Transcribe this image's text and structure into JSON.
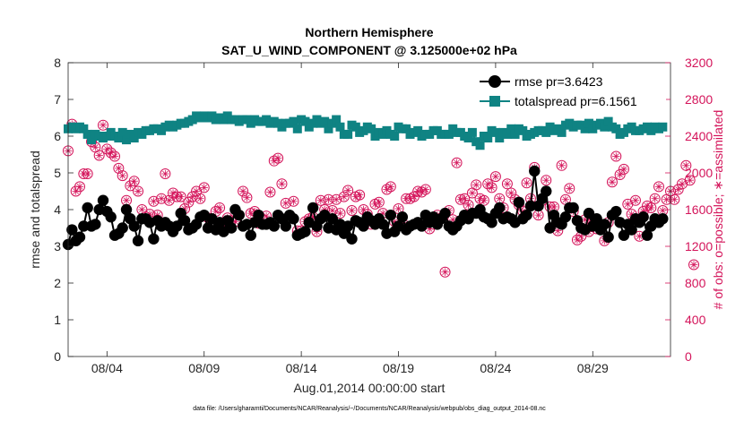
{
  "chart_data": {
    "type": "line",
    "title": "Northern Hemisphere",
    "subtitle": "SAT_U_WIND_COMPONENT @ 3.125000e+02 hPa",
    "xlabel": "Aug.01,2014 00:00:00 start",
    "ylabel": "rmse and totalspread",
    "y2label": "# of obs: o=possible; ∗=assimilated",
    "footnote": "data file: /Users/gharamti/Documents/NCAR/Reanalysis/~/Documents/NCAR/Reanalysis/webpub/obs_diag_output_2014-08.nc",
    "xlim": [
      1,
      32
    ],
    "ylim": [
      0,
      8
    ],
    "y2lim": [
      0,
      3200
    ],
    "x_ticks": [
      3,
      8,
      13,
      18,
      23,
      28
    ],
    "x_tick_labels": [
      "08/04",
      "08/09",
      "08/14",
      "08/19",
      "08/24",
      "08/29"
    ],
    "y_ticks": [
      "0",
      "1",
      "2",
      "3",
      "4",
      "5",
      "6",
      "7",
      "8"
    ],
    "y2_ticks": [
      "0",
      "400",
      "800",
      "1200",
      "1600",
      "2000",
      "2400",
      "2800",
      "3200"
    ],
    "legend_position": "top-right",
    "colors": {
      "rmse": "#000000",
      "spread": "#0f8383",
      "obs": "#d4145a"
    },
    "series": [
      {
        "name": "rmse pr=3.6423",
        "marker": "circle",
        "values": [
          3.05,
          3.45,
          3.15,
          3.25,
          3.55,
          4.05,
          3.55,
          3.6,
          4.0,
          4.25,
          3.95,
          3.8,
          3.3,
          3.35,
          3.5,
          4.0,
          3.75,
          3.55,
          3.15,
          3.75,
          3.75,
          3.65,
          3.2,
          3.7,
          3.55,
          3.65,
          3.55,
          3.4,
          3.55,
          3.9,
          3.7,
          3.45,
          3.5,
          3.6,
          3.8,
          3.85,
          3.5,
          3.75,
          3.45,
          3.65,
          3.4,
          3.7,
          3.5,
          4.0,
          3.85,
          3.55,
          3.6,
          3.3,
          3.65,
          3.85,
          3.6,
          3.6,
          3.65,
          3.55,
          3.85,
          3.75,
          3.55,
          3.85,
          3.75,
          3.3,
          3.35,
          3.4,
          3.65,
          4.05,
          3.55,
          3.75,
          3.85,
          3.5,
          3.75,
          3.45,
          3.6,
          3.35,
          3.55,
          3.2,
          3.7,
          3.65,
          3.55,
          3.8,
          3.7,
          3.6,
          3.75,
          3.6,
          3.35,
          3.85,
          3.4,
          3.55,
          3.8,
          3.45,
          3.55,
          3.6,
          3.65,
          3.55,
          3.85,
          3.65,
          3.8,
          3.6,
          3.75,
          3.9,
          3.55,
          3.45,
          3.55,
          3.7,
          3.85,
          3.75,
          3.9,
          3.9,
          4.0,
          3.8,
          3.75,
          3.65,
          3.9,
          4.05,
          3.75,
          3.8,
          3.75,
          3.65,
          4.2,
          3.75,
          3.85,
          4.1,
          5.05,
          4.1,
          4.3,
          4.5,
          3.5,
          3.85,
          3.65,
          3.6,
          3.8,
          4.05,
          4.05,
          3.7,
          3.5,
          3.45,
          3.9,
          3.55,
          3.75,
          3.45,
          3.6,
          3.25,
          3.85,
          3.95,
          3.65,
          3.3,
          3.6,
          3.45,
          3.75,
          3.65,
          3.8,
          3.3,
          3.55,
          3.75,
          3.65,
          3.75
        ]
      },
      {
        "name": "totalspread pr=6.1561",
        "marker": "square",
        "values": [
          6.2,
          6.25,
          6.2,
          6.25,
          6.2,
          6.05,
          5.9,
          6.05,
          6.0,
          5.95,
          6.0,
          6.1,
          6.0,
          5.95,
          6.1,
          5.9,
          6.05,
          5.95,
          6.1,
          6.05,
          6.15,
          6.15,
          6.2,
          6.2,
          6.15,
          6.25,
          6.3,
          6.25,
          6.3,
          6.35,
          6.35,
          6.4,
          6.45,
          6.55,
          6.5,
          6.55,
          6.5,
          6.55,
          6.45,
          6.5,
          6.45,
          6.55,
          6.45,
          6.45,
          6.4,
          6.45,
          6.45,
          6.35,
          6.45,
          6.4,
          6.4,
          6.45,
          6.35,
          6.4,
          6.35,
          6.25,
          6.35,
          6.35,
          6.4,
          6.2,
          6.45,
          6.4,
          6.25,
          6.35,
          6.45,
          6.35,
          6.4,
          6.2,
          6.35,
          6.45,
          6.25,
          6.05,
          6.05,
          6.3,
          6.25,
          6.1,
          6.15,
          6.25,
          6.2,
          6.0,
          6.1,
          6.05,
          6.15,
          6.05,
          6.0,
          6.25,
          6.2,
          6.2,
          6.05,
          6.1,
          6.15,
          6.0,
          6.05,
          6.05,
          6.15,
          6.15,
          6.05,
          6.05,
          6.05,
          6.2,
          6.1,
          6.1,
          6.0,
          5.95,
          6.1,
          5.85,
          5.75,
          6.0,
          5.95,
          6.15,
          6.1,
          5.95,
          6.1,
          6.05,
          6.2,
          6.05,
          6.2,
          6.15,
          6.0,
          6.05,
          6.1,
          6.15,
          6.15,
          6.1,
          6.25,
          6.15,
          6.2,
          6.1,
          6.3,
          6.35,
          6.25,
          6.3,
          6.3,
          6.2,
          6.35,
          6.2,
          6.3,
          6.35,
          6.25,
          6.4,
          6.25,
          6.2,
          6.05,
          6.1,
          6.2,
          6.25,
          6.15,
          6.15,
          6.2,
          6.25,
          6.15,
          6.25,
          6.2,
          6.25
        ]
      }
    ],
    "obs_series": {
      "name": "# of obs",
      "axis": "right",
      "marker": "circled-asterisk",
      "values": [
        2240,
        2530,
        1800,
        1850,
        1990,
        1990,
        2340,
        2280,
        2190,
        2520,
        2260,
        2220,
        2180,
        2050,
        1970,
        1700,
        1860,
        1910,
        1800,
        1600,
        1520,
        1550,
        1690,
        1540,
        1720,
        1990,
        1700,
        1780,
        1740,
        1740,
        1610,
        1680,
        1740,
        1800,
        1720,
        1840,
        1510,
        1460,
        1580,
        1620,
        1430,
        1510,
        1480,
        1470,
        1540,
        1800,
        1730,
        1560,
        1580,
        1450,
        1490,
        1530,
        1790,
        2130,
        2160,
        1880,
        1670,
        1510,
        1690,
        1370,
        1370,
        1470,
        1500,
        1520,
        1360,
        1700,
        1600,
        1710,
        1590,
        1710,
        1560,
        1740,
        1810,
        1590,
        1740,
        1760,
        1600,
        1550,
        1440,
        1660,
        1680,
        1560,
        1820,
        1850,
        1470,
        1610,
        1460,
        1720,
        1720,
        1740,
        1800,
        1790,
        1820,
        1390,
        1440,
        1540,
        1510,
        920,
        1590,
        1490,
        2110,
        1710,
        1720,
        1650,
        1780,
        1870,
        1720,
        1700,
        1880,
        1840,
        1960,
        1720,
        1620,
        1880,
        1780,
        1710,
        1650,
        1580,
        1890,
        1720,
        2060,
        1540,
        1700,
        1920,
        1630,
        1630,
        1370,
        2080,
        1710,
        1830,
        1580,
        1270,
        1310,
        1490,
        1360,
        1460,
        1390,
        1400,
        1260,
        1460,
        1900,
        2180,
        1980,
        2040,
        1660,
        1550,
        1700,
        1310,
        1580,
        1640,
        1620,
        1720,
        1850,
        1590,
        1710,
        1800,
        1710,
        1820,
        1880,
        2080,
        1920,
        1000
      ]
    }
  }
}
